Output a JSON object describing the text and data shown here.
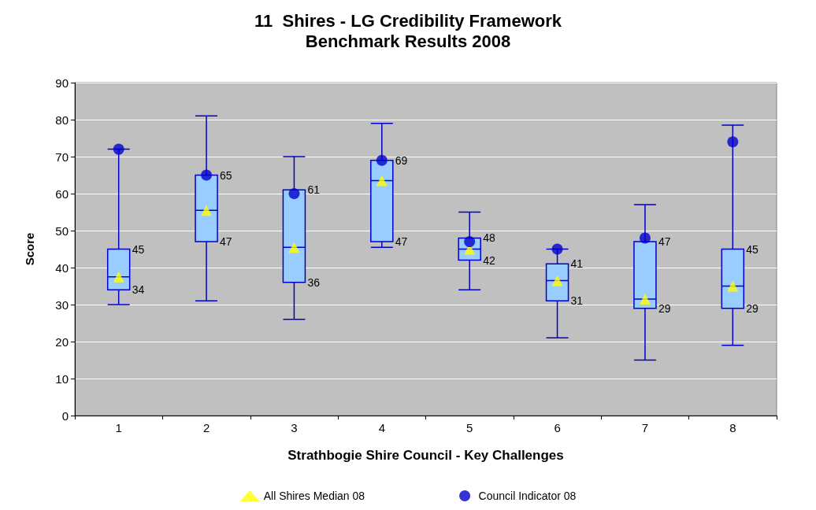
{
  "chart_data": {
    "type": "box",
    "title": "11  Shires - LG Credibility Framework\nBenchmark Results 2008",
    "xlabel": "Strathbogie Shire Council - Key Challenges",
    "ylabel": "Score",
    "categories": [
      "1",
      "2",
      "3",
      "4",
      "5",
      "6",
      "7",
      "8"
    ],
    "color": "#99ccff",
    "boxes": [
      {
        "low": 30,
        "q1": 34,
        "median": 37.5,
        "q3": 45,
        "high": 72
      },
      {
        "low": 31,
        "q1": 47,
        "median": 55.5,
        "q3": 65,
        "high": 81
      },
      {
        "low": 26,
        "q1": 36,
        "median": 45.5,
        "q3": 61,
        "high": 70
      },
      {
        "low": 45.5,
        "q1": 47,
        "median": 63.5,
        "q3": 69,
        "high": 79
      },
      {
        "low": 34,
        "q1": 42,
        "median": 45,
        "q3": 48,
        "high": 55
      },
      {
        "low": 21,
        "q1": 31,
        "median": 36.5,
        "q3": 41,
        "high": 45
      },
      {
        "low": 15,
        "q1": 29,
        "median": 31.5,
        "q3": 47,
        "high": 57
      },
      {
        "low": 19,
        "q1": 29,
        "median": 35,
        "q3": 45,
        "high": 78.5
      }
    ],
    "series": [
      {
        "type": "scatter",
        "name": "All Shires Median 08",
        "color": "#ffff00",
        "marker": "triangle",
        "x": [
          "1",
          "2",
          "3",
          "4",
          "5",
          "6",
          "7",
          "8"
        ],
        "values": [
          37.5,
          55.5,
          45.5,
          63.5,
          45,
          36.5,
          31.5,
          35
        ]
      },
      {
        "type": "scatter",
        "name": "Council Indicator 08",
        "color": "#0000cc",
        "marker": "circle",
        "x": [
          "1",
          "2",
          "3",
          "4",
          "5",
          "6",
          "7",
          "8"
        ],
        "values": [
          72,
          65,
          60,
          69,
          47,
          45,
          48,
          74
        ]
      }
    ],
    "ylim": [
      0,
      90
    ],
    "yticks": [
      0,
      10,
      20,
      30,
      40,
      50,
      60,
      70,
      80,
      90
    ],
    "annotations": [
      {
        "text": "34",
        "x": "1",
        "y": 34
      },
      {
        "text": "45",
        "x": "1",
        "y": 45
      },
      {
        "text": "47",
        "x": "2",
        "y": 47
      },
      {
        "text": "65",
        "x": "2",
        "y": 65
      },
      {
        "text": "36",
        "x": "3",
        "y": 36
      },
      {
        "text": "61",
        "x": "3",
        "y": 61
      },
      {
        "text": "47",
        "x": "4",
        "y": 47
      },
      {
        "text": "69",
        "x": "4",
        "y": 69
      },
      {
        "text": "42",
        "x": "5",
        "y": 42
      },
      {
        "text": "48",
        "x": "5",
        "y": 48
      },
      {
        "text": "31",
        "x": "6",
        "y": 31
      },
      {
        "text": "41",
        "x": "6",
        "y": 41
      },
      {
        "text": "29",
        "x": "7",
        "y": 29
      },
      {
        "text": "47",
        "x": "7",
        "y": 47
      },
      {
        "text": "29",
        "x": "8",
        "y": 29
      },
      {
        "text": "45",
        "x": "8",
        "y": 45
      }
    ],
    "grid": "y",
    "legend": "bottom"
  }
}
